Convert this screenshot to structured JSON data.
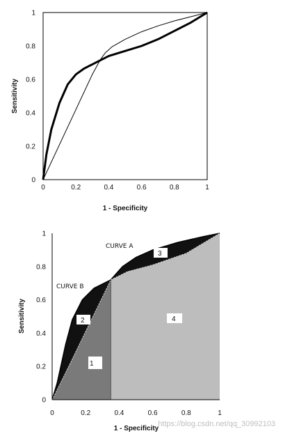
{
  "chart_data": [
    {
      "type": "line",
      "xlabel": "1 - Specificity",
      "ylabel": "Sensitivity",
      "xlim": [
        0,
        1
      ],
      "ylim": [
        0,
        1
      ],
      "xticks": [
        "0",
        "0.2",
        "0.4",
        "0.6",
        "0.8",
        "1"
      ],
      "yticks": [
        "0",
        "0.2",
        "0.4",
        "0.6",
        "0.8",
        "1"
      ],
      "grid": false,
      "series": [
        {
          "style": "thick",
          "x": [
            0,
            0.02,
            0.05,
            0.1,
            0.15,
            0.2,
            0.25,
            0.3,
            0.35,
            0.4,
            0.5,
            0.6,
            0.7,
            0.8,
            0.9,
            1
          ],
          "y": [
            0,
            0.15,
            0.3,
            0.46,
            0.57,
            0.63,
            0.665,
            0.69,
            0.715,
            0.74,
            0.77,
            0.8,
            0.84,
            0.89,
            0.94,
            1
          ]
        },
        {
          "style": "thin",
          "x": [
            0,
            0.1,
            0.2,
            0.3,
            0.35,
            0.38,
            0.42,
            0.5,
            0.6,
            0.7,
            0.8,
            0.9,
            1
          ],
          "y": [
            0,
            0.21,
            0.42,
            0.63,
            0.72,
            0.76,
            0.795,
            0.84,
            0.885,
            0.92,
            0.95,
            0.975,
            1
          ]
        }
      ]
    },
    {
      "type": "area",
      "xlabel": "1 - Specificity",
      "ylabel": "Sensitivity",
      "xlim": [
        0,
        1
      ],
      "ylim": [
        0,
        1
      ],
      "xticks": [
        "0",
        "0.2",
        "0.4",
        "0.6",
        "0.8",
        "1"
      ],
      "yticks": [
        "0",
        "0.2",
        "0.4",
        "0.6",
        "0.8",
        "1"
      ],
      "grid": false,
      "crossover": {
        "x": 0.35,
        "y": 0.72
      },
      "curves": [
        {
          "name": "CURVE A",
          "x": [
            0,
            0.1,
            0.2,
            0.35,
            0.45,
            0.6,
            0.8,
            1
          ],
          "y": [
            0,
            0.2,
            0.41,
            0.72,
            0.77,
            0.81,
            0.88,
            1
          ]
        },
        {
          "name": "CURVE B",
          "x": [
            0,
            0.03,
            0.08,
            0.12,
            0.18,
            0.25,
            0.35,
            0.42,
            0.5,
            0.6,
            0.75,
            0.9,
            1
          ],
          "y": [
            0,
            0.1,
            0.33,
            0.48,
            0.6,
            0.67,
            0.72,
            0.8,
            0.855,
            0.9,
            0.945,
            0.98,
            1
          ]
        }
      ],
      "regions": [
        {
          "label": "1",
          "fill": "#7a7a7a"
        },
        {
          "label": "2",
          "fill": "#111111"
        },
        {
          "label": "3",
          "fill": "#111111"
        },
        {
          "label": "4",
          "fill": "#bdbdbd"
        }
      ]
    }
  ],
  "watermark": "https://blog.csdn.net/qq_30992103"
}
